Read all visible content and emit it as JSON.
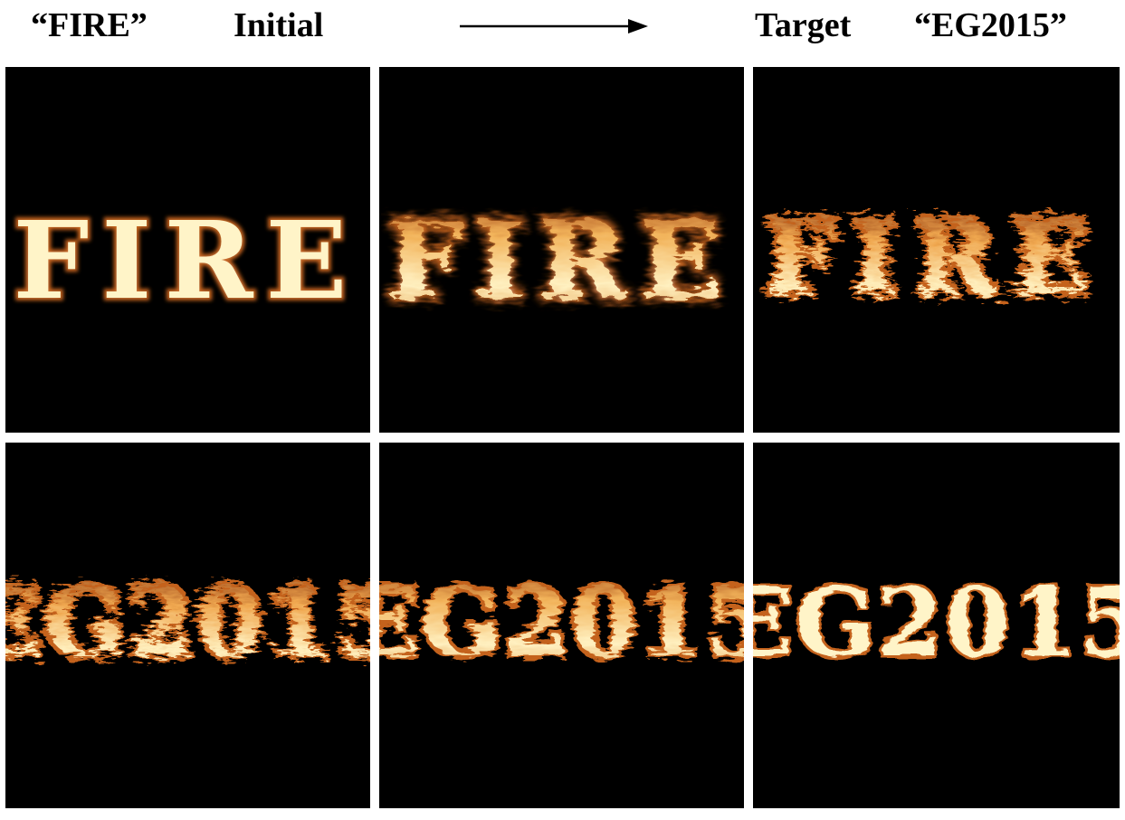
{
  "header": {
    "source_label": "“FIRE”",
    "initial_label": "Initial",
    "target_label": "Target",
    "target_text_label": "“EG2015”"
  },
  "colors": {
    "background": "#000000",
    "flame_core": "#fff4c8",
    "flame_mid": "#f2b35a",
    "flame_edge": "#b5501c",
    "header_text": "#000000"
  },
  "icons": {
    "arrow": "right-arrow-icon"
  },
  "panels": [
    {
      "id": "frame-1",
      "stage": "initial",
      "glyphs": "FIRE"
    },
    {
      "id": "frame-2",
      "stage": "transition",
      "glyphs": "FIRE"
    },
    {
      "id": "frame-3",
      "stage": "transition",
      "glyphs": "FIRE"
    },
    {
      "id": "frame-4",
      "stage": "transition",
      "glyphs": "EG2015"
    },
    {
      "id": "frame-5",
      "stage": "transition",
      "glyphs": "EG2015"
    },
    {
      "id": "frame-6",
      "stage": "target",
      "glyphs": "EG2015"
    }
  ]
}
